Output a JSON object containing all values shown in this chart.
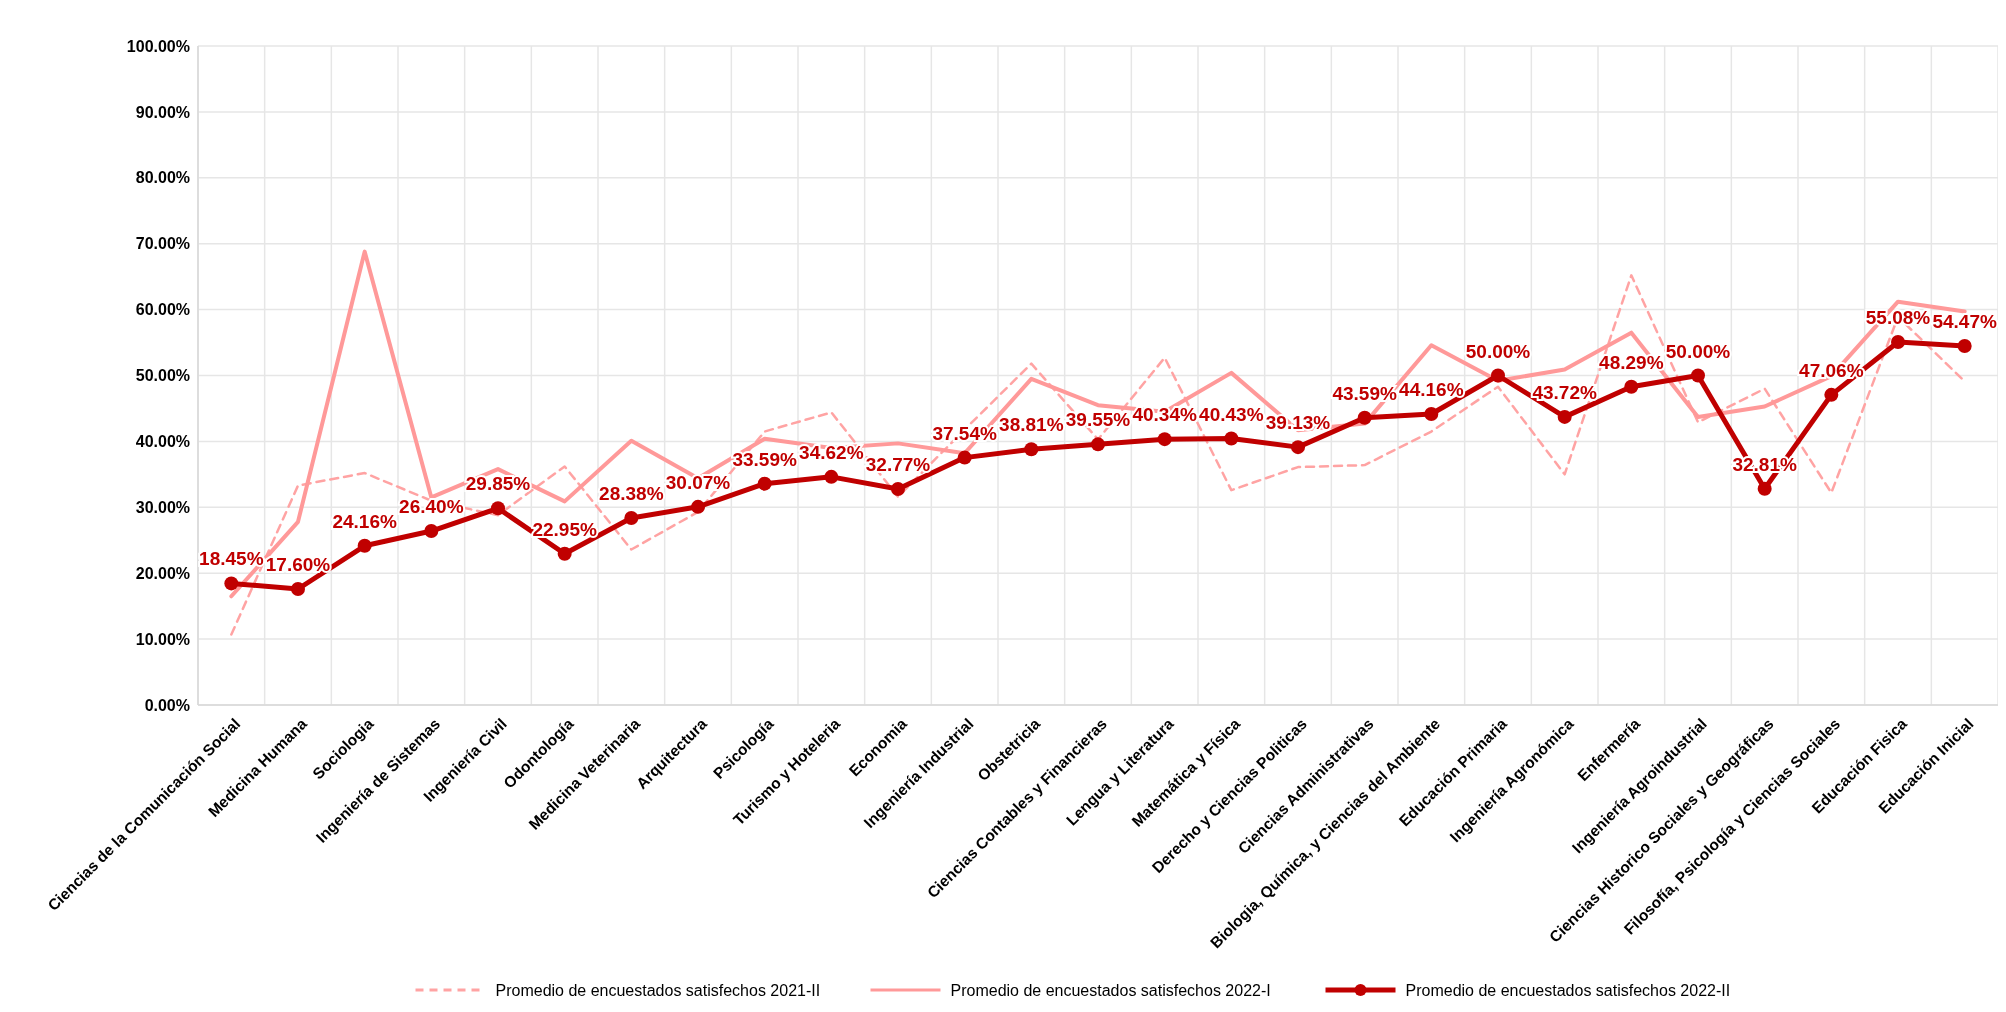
{
  "chart_data": {
    "type": "line",
    "categories": [
      "Ciencias de la Comunicación Social",
      "Medicina Humana",
      "Sociologia",
      "Ingeniería de Sistemas",
      "Ingeniería Civil",
      "Odontología",
      "Medicina Veterinaria",
      "Arquitectura",
      "Psicología",
      "Turismo y Hoteleria",
      "Economia",
      "Ingeniería Industrial",
      "Obstetricia",
      "Ciencias Contables y Financieras",
      "Lengua y Literatura",
      "Matemática y Física",
      "Derecho y Ciencias Politicas",
      "Ciencias Administrativas",
      "Biologia, Química, y Ciencias del Ambiente",
      "Educación Primaria",
      "Ingeniería Agronómica",
      "Enfermería",
      "Ingeniería Agroindustrial",
      "Ciencias Historico Sociales y Geográficas",
      "Filosofía, Psicología y Ciencias Sociales",
      "Educación Fisica",
      "Educación Inicial"
    ],
    "series": [
      {
        "name": "Promedio de encuestados satisfechos 2021-II",
        "color": "#ffa3a3",
        "line_style": "dashed",
        "marker": "none",
        "values": [
          10.7,
          33.3,
          35.2,
          31.0,
          28.8,
          36.2,
          23.6,
          29.3,
          41.5,
          44.4,
          31.6,
          41.8,
          51.8,
          40.3,
          52.7,
          32.6,
          36.1,
          36.4,
          41.5,
          48.3,
          35.0,
          65.2,
          42.9,
          48.0,
          32.2,
          58.9,
          49.1
        ]
      },
      {
        "name": "Promedio de encuestados satisfechos 2022-I",
        "color": "#ff9999",
        "line_style": "solid",
        "marker": "none",
        "values": [
          16.5,
          27.8,
          68.8,
          31.5,
          35.8,
          30.9,
          40.1,
          34.4,
          40.4,
          39.0,
          39.7,
          38.2,
          49.5,
          45.5,
          44.5,
          50.4,
          41.7,
          42.7,
          54.6,
          49.2,
          50.9,
          56.5,
          43.7,
          45.3,
          49.9,
          61.2,
          59.7
        ]
      },
      {
        "name": "Promedio de encuestados satisfechos 2022-II",
        "color": "#c00000",
        "line_style": "solid",
        "marker": "circle",
        "values": [
          18.45,
          17.6,
          24.16,
          26.4,
          29.85,
          22.95,
          28.38,
          30.07,
          33.59,
          34.62,
          32.77,
          37.54,
          38.81,
          39.55,
          40.34,
          40.43,
          39.13,
          43.59,
          44.16,
          50.0,
          43.72,
          48.29,
          50.0,
          32.81,
          47.06,
          55.08,
          54.47
        ],
        "value_labels": [
          "18.45%",
          "17.60%",
          "24.16%",
          "26.40%",
          "29.85%",
          "22.95%",
          "28.38%",
          "30.07%",
          "33.59%",
          "34.62%",
          "32.77%",
          "37.54%",
          "38.81%",
          "39.55%",
          "40.34%",
          "40.43%",
          "39.13%",
          "43.59%",
          "44.16%",
          "50.00%",
          "43.72%",
          "48.29%",
          "50.00%",
          "32.81%",
          "47.06%",
          "55.08%",
          "54.47%"
        ]
      }
    ],
    "ylim": [
      0,
      100
    ],
    "yticks": [
      {
        "value": 0,
        "label": "0.00%"
      },
      {
        "value": 10,
        "label": "10.00%"
      },
      {
        "value": 20,
        "label": "20.00%"
      },
      {
        "value": 30,
        "label": "30.00%"
      },
      {
        "value": 40,
        "label": "40.00%"
      },
      {
        "value": 50,
        "label": "50.00%"
      },
      {
        "value": 60,
        "label": "60.00%"
      },
      {
        "value": 70,
        "label": "70.00%"
      },
      {
        "value": 80,
        "label": "80.00%"
      },
      {
        "value": 90,
        "label": "90.00%"
      },
      {
        "value": 100,
        "label": "100.00%"
      }
    ],
    "grid": true,
    "legend": "bottom"
  }
}
